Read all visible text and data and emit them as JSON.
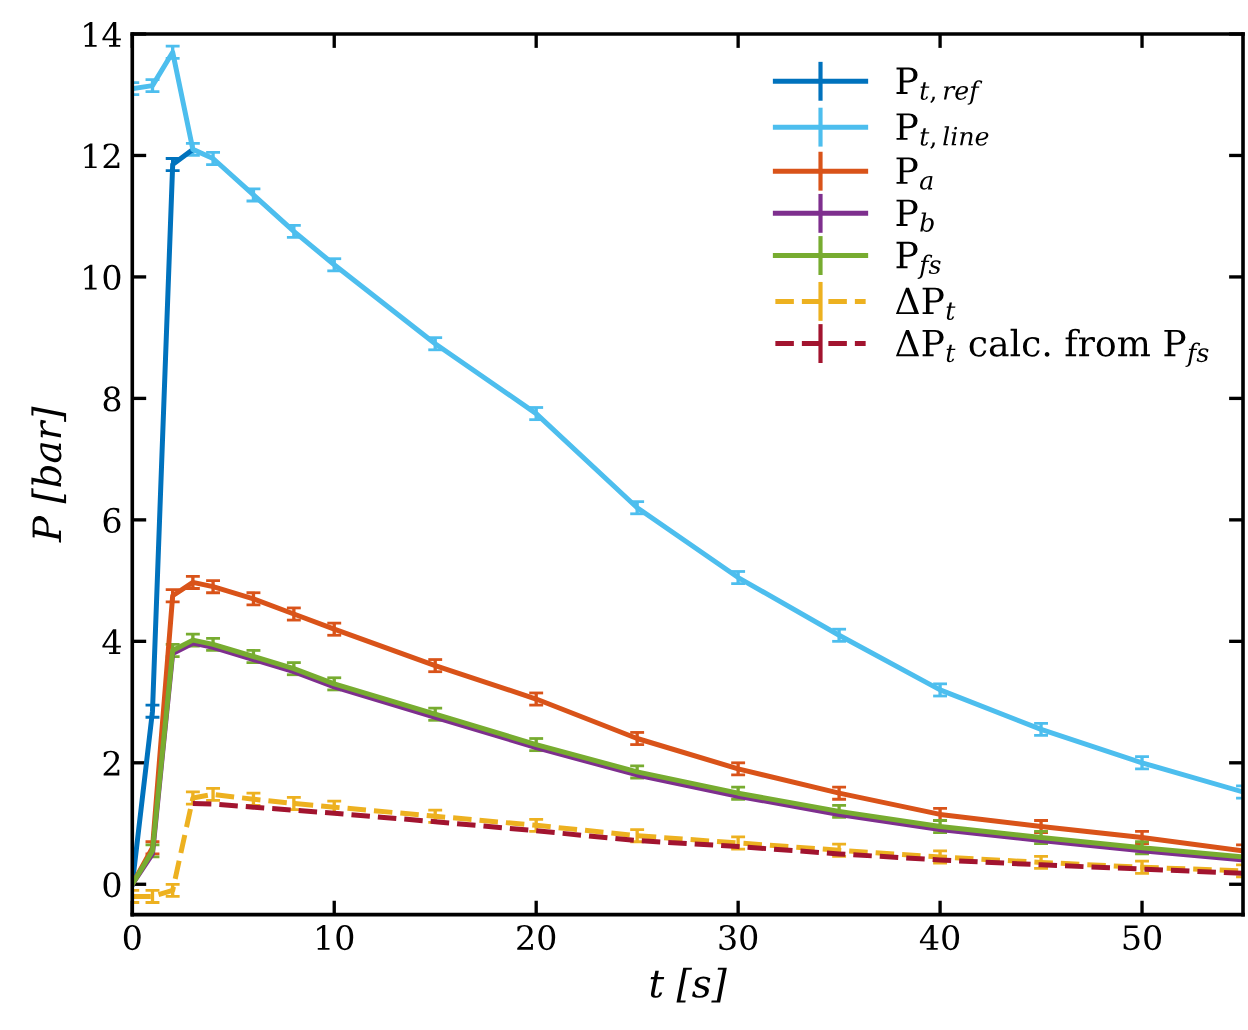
{
  "chart_data": {
    "type": "line",
    "xlabel": "t [s]",
    "ylabel": "P [bar]",
    "x": [
      0,
      1,
      2,
      3,
      4,
      6,
      8,
      10,
      15,
      20,
      25,
      30,
      35,
      40,
      45,
      50,
      55
    ],
    "xlim": [
      0,
      55
    ],
    "ylim": [
      -0.5,
      14
    ],
    "xticks": [
      0,
      10,
      20,
      30,
      40,
      50
    ],
    "yticks": [
      0,
      2,
      4,
      6,
      8,
      10,
      12,
      14
    ],
    "grid": false,
    "legend": "top right",
    "marker": "none",
    "series": [
      {
        "name": "P$_{t,ref}$",
        "color": "#0072bd",
        "line_style": "solid",
        "values": [
          0,
          2.85,
          11.85,
          12.1,
          null,
          null,
          null,
          null,
          null,
          null,
          null,
          null,
          null,
          null,
          null,
          null,
          null
        ],
        "errors": [
          null,
          0.1,
          0.1,
          null,
          null,
          null,
          null,
          null,
          null,
          null,
          null,
          null,
          null,
          null,
          null,
          null,
          null
        ]
      },
      {
        "name": "P$_{t,line}$",
        "color": "#4dbeee",
        "line_style": "solid",
        "values": [
          13.1,
          13.15,
          13.7,
          12.1,
          11.95,
          11.35,
          10.75,
          10.2,
          8.9,
          7.75,
          6.2,
          5.05,
          4.1,
          3.2,
          2.55,
          2.0,
          1.52
        ],
        "errors": [
          0.1,
          0.1,
          0.1,
          0.1,
          0.1,
          0.1,
          0.1,
          0.1,
          0.1,
          0.1,
          0.1,
          0.1,
          0.1,
          0.1,
          0.1,
          0.1,
          0.1
        ]
      },
      {
        "name": "P$_{a}$",
        "color": "#d95319",
        "line_style": "solid",
        "values": [
          0,
          0.6,
          4.75,
          4.97,
          4.9,
          4.7,
          4.45,
          4.2,
          3.6,
          3.05,
          2.4,
          1.9,
          1.5,
          1.15,
          0.95,
          0.77,
          0.55
        ],
        "errors": [
          null,
          0.1,
          0.1,
          0.1,
          0.1,
          0.1,
          0.1,
          0.1,
          0.1,
          0.1,
          0.1,
          0.1,
          0.1,
          0.1,
          0.1,
          0.1,
          0.1
        ]
      },
      {
        "name": "P$_{b}$",
        "color": "#7e2f8e",
        "line_style": "solid",
        "values": [
          0,
          0.5,
          3.8,
          3.97,
          3.9,
          3.7,
          3.5,
          3.25,
          2.75,
          2.25,
          1.8,
          1.45,
          1.15,
          0.9,
          0.72,
          0.55,
          0.4
        ],
        "errors": [
          null,
          null,
          null,
          null,
          null,
          null,
          null,
          null,
          null,
          null,
          null,
          null,
          null,
          null,
          null,
          null,
          null
        ]
      },
      {
        "name": "P$_{fs}$",
        "color": "#77ac30",
        "line_style": "solid",
        "values": [
          0,
          0.55,
          3.85,
          4.02,
          3.95,
          3.75,
          3.55,
          3.3,
          2.8,
          2.3,
          1.85,
          1.5,
          1.2,
          0.95,
          0.77,
          0.6,
          0.45
        ],
        "errors": [
          null,
          0.1,
          0.1,
          0.1,
          0.1,
          0.1,
          0.1,
          0.1,
          0.1,
          0.1,
          0.1,
          0.1,
          0.1,
          0.1,
          0.1,
          0.1,
          null
        ]
      },
      {
        "name": "ΔP$_{t}$",
        "color": "#edb120",
        "line_style": "dashed",
        "values": [
          -0.2,
          -0.2,
          -0.1,
          1.42,
          1.48,
          1.4,
          1.33,
          1.27,
          1.12,
          0.97,
          0.8,
          0.68,
          0.56,
          0.45,
          0.36,
          0.28,
          0.22
        ],
        "errors": [
          0.1,
          0.1,
          0.1,
          0.1,
          0.1,
          0.1,
          0.1,
          0.1,
          0.1,
          0.1,
          0.1,
          0.1,
          0.1,
          0.1,
          0.1,
          0.1,
          0.1
        ]
      },
      {
        "name": "ΔP$_{t}$ calc. from P$_{fs}$",
        "color": "#a2142f",
        "line_style": "dashed",
        "values": [
          null,
          null,
          null,
          1.33,
          1.32,
          1.27,
          1.22,
          1.17,
          1.03,
          0.88,
          0.72,
          0.62,
          0.5,
          0.4,
          0.32,
          0.25,
          0.18
        ],
        "errors": [
          null,
          null,
          null,
          null,
          null,
          null,
          null,
          null,
          null,
          null,
          null,
          null,
          null,
          null,
          null,
          null,
          null
        ]
      }
    ]
  }
}
